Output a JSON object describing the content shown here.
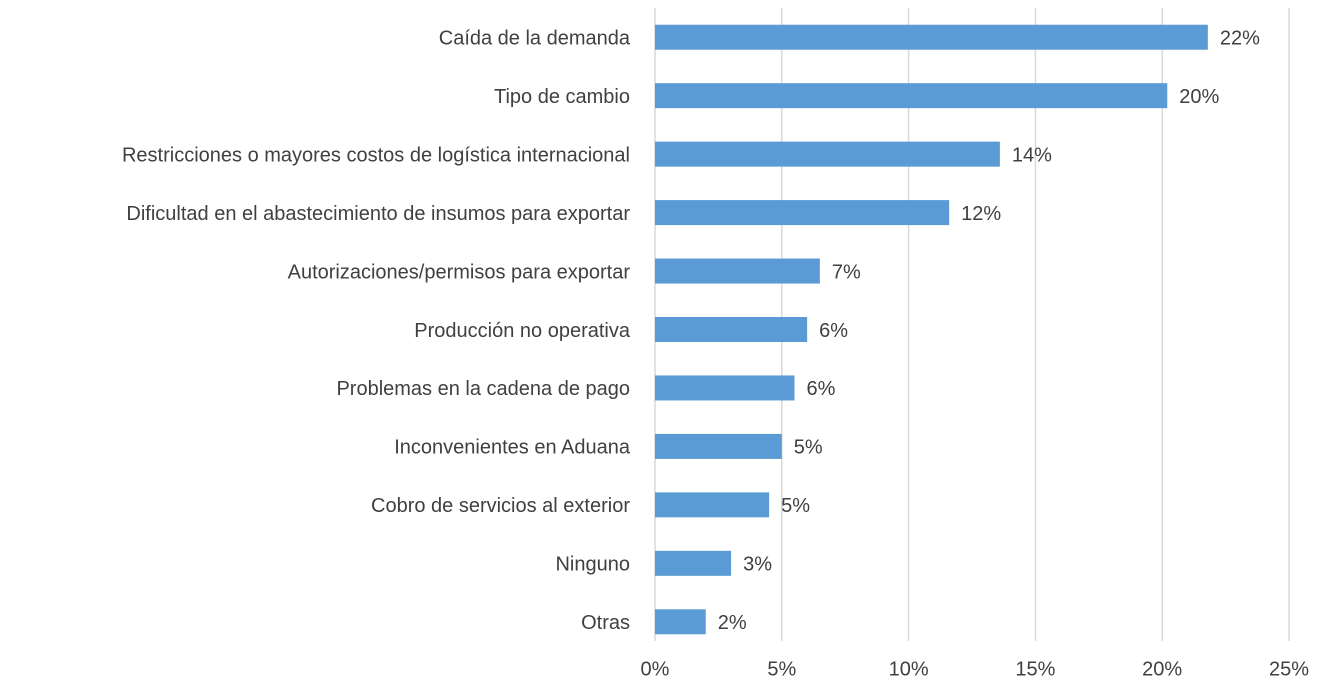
{
  "chart_data": {
    "type": "bar",
    "orientation": "horizontal",
    "categories": [
      "Caída de la demanda",
      "Tipo de cambio",
      "Restricciones o mayores costos de logística internacional",
      "Dificultad en el abastecimiento de insumos para exportar",
      "Autorizaciones/permisos para exportar",
      "Producción no operativa",
      "Problemas en la cadena de pago",
      "Inconvenientes en Aduana",
      "Cobro de servicios al exterior",
      "Ninguno",
      "Otras"
    ],
    "values": [
      21.8,
      20.2,
      13.6,
      11.6,
      6.5,
      6.0,
      5.5,
      5.0,
      4.5,
      3.0,
      2.0
    ],
    "value_labels": [
      "22%",
      "20%",
      "14%",
      "12%",
      "7%",
      "6%",
      "6%",
      "5%",
      "5%",
      "3%",
      "2%"
    ],
    "color": "#5b9bd5",
    "xlim": [
      0,
      25
    ],
    "xticks": [
      {
        "value": 0,
        "label": "0%"
      },
      {
        "value": 5,
        "label": "5%"
      },
      {
        "value": 10,
        "label": "10%"
      },
      {
        "value": 15,
        "label": "15%"
      },
      {
        "value": 20,
        "label": "20%"
      },
      {
        "value": 25,
        "label": "25%"
      }
    ],
    "grid": true
  }
}
